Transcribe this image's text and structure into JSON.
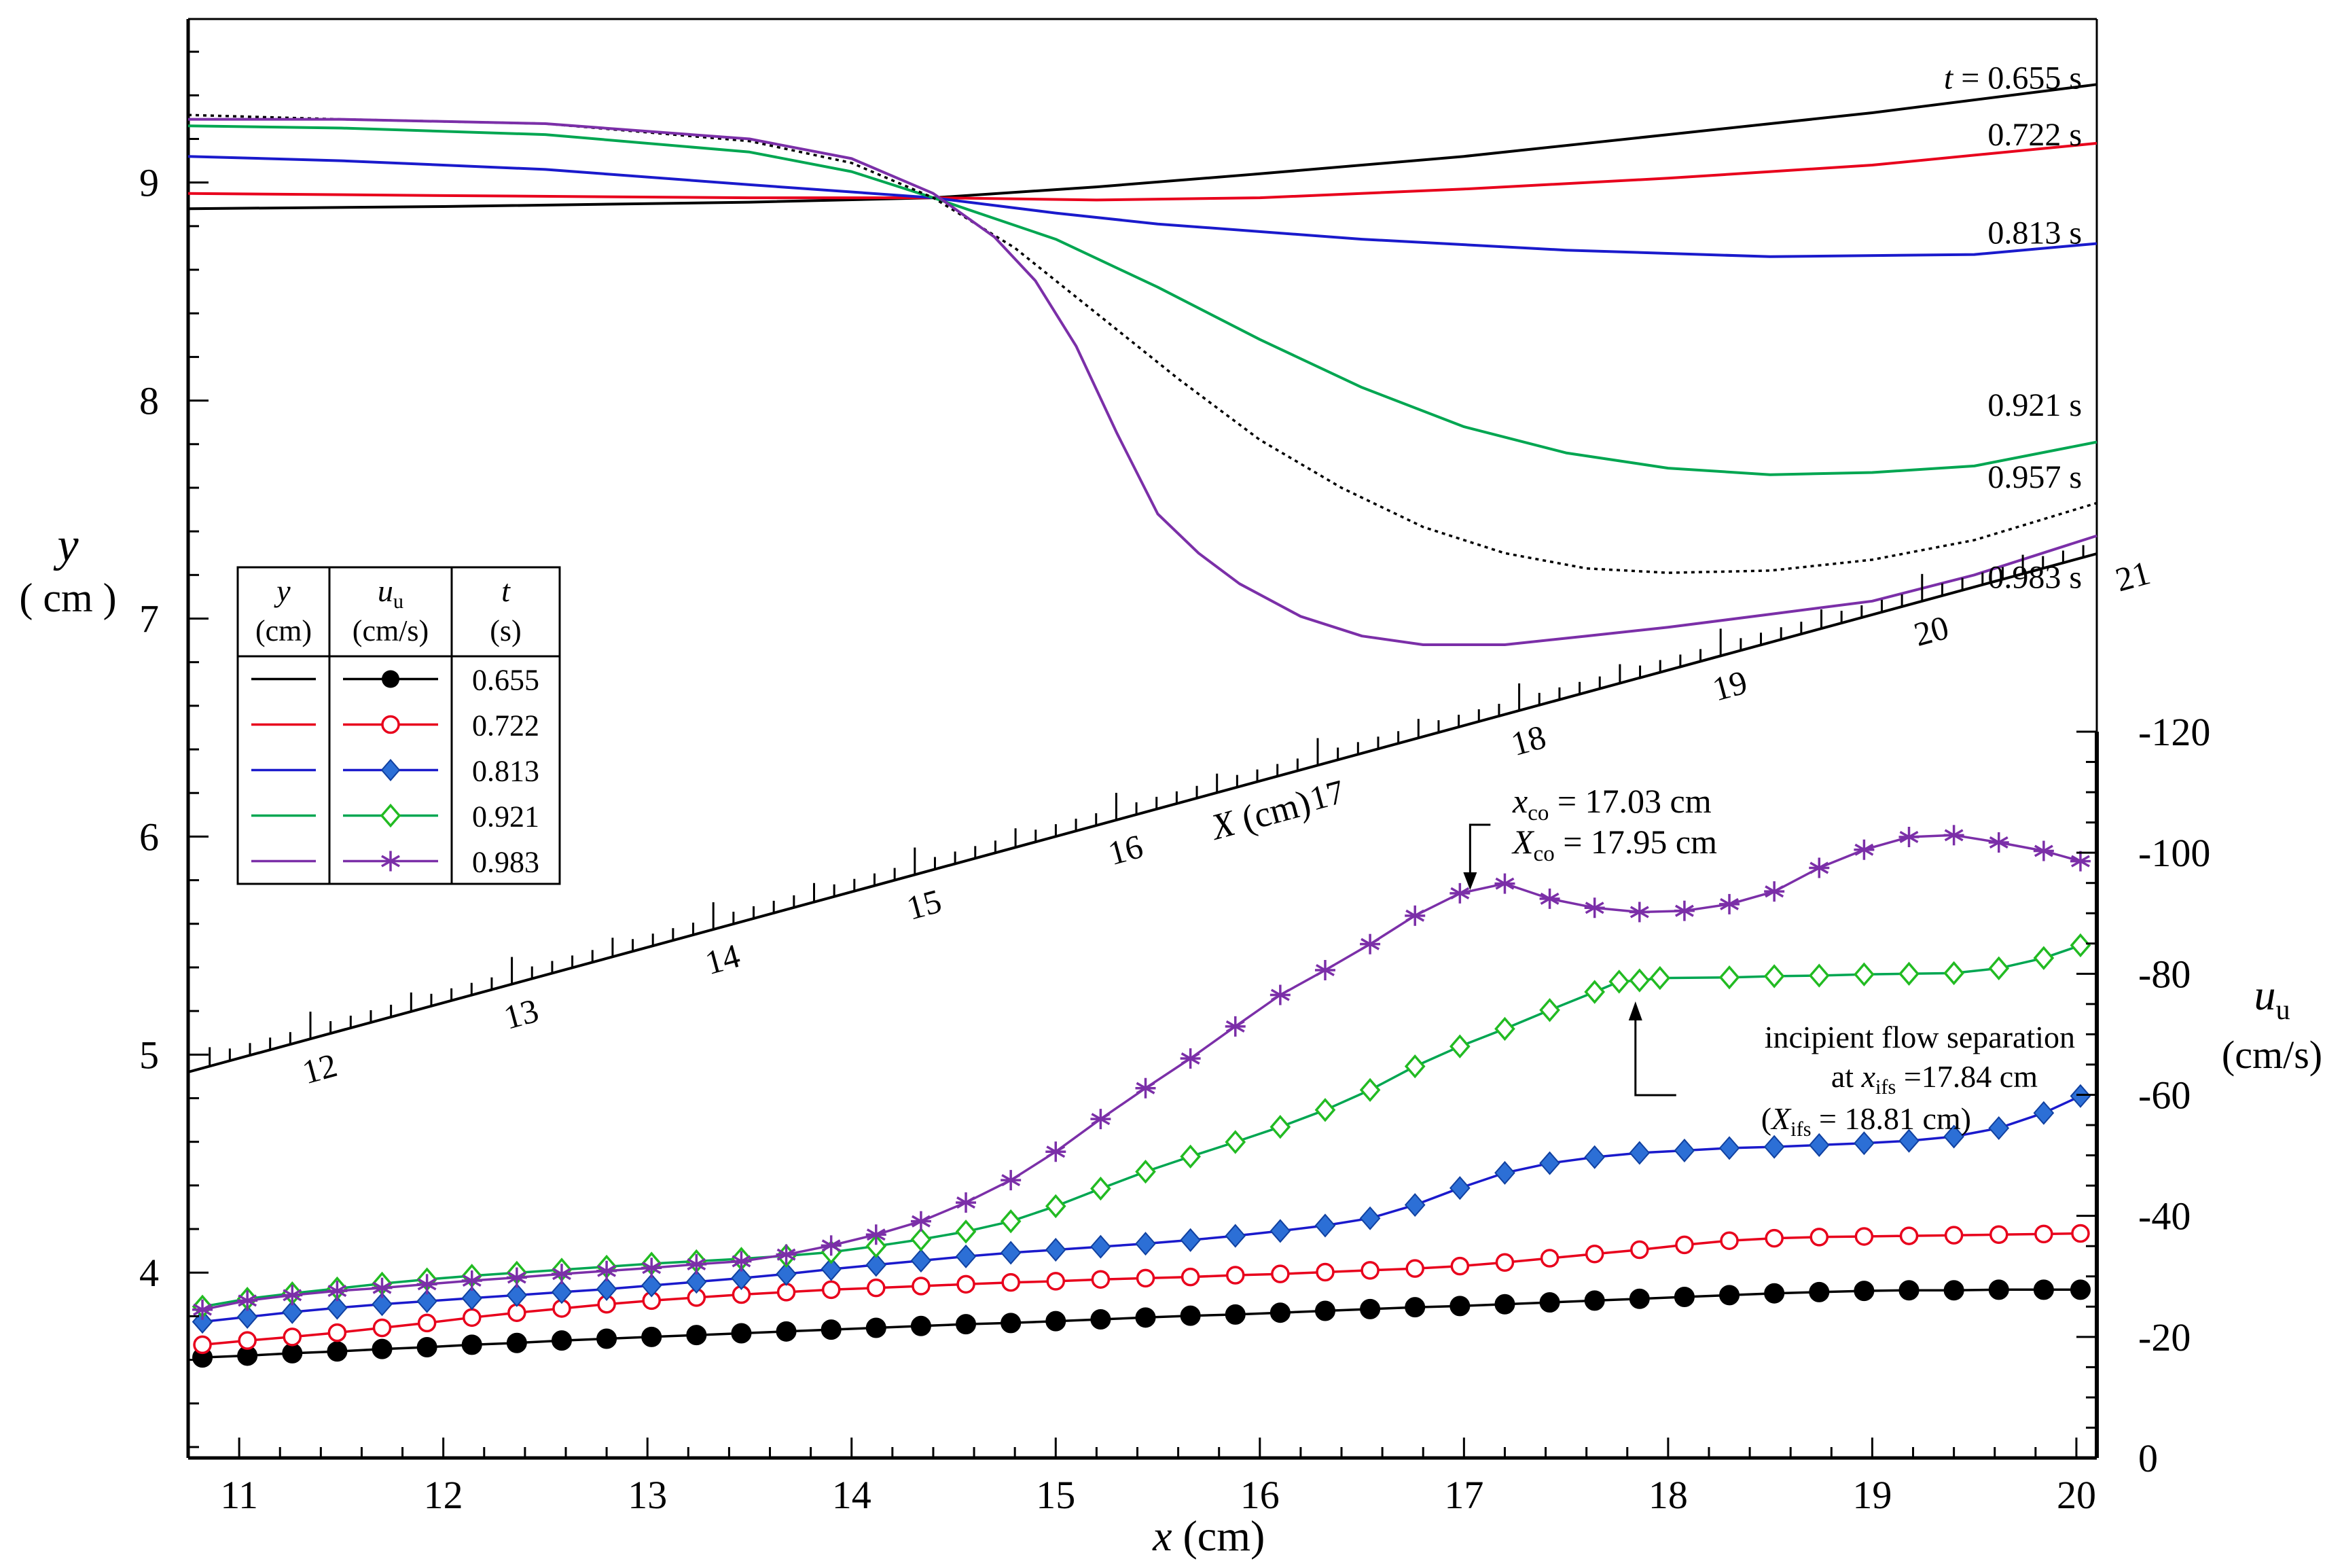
{
  "chart_data": {
    "type": "line",
    "title": "",
    "xlabel": "x",
    "xlabel_unit": "(cm)",
    "xlim": [
      10.75,
      20.1
    ],
    "x_ticks": [
      "11",
      "12",
      "13",
      "14",
      "15",
      "16",
      "17",
      "18",
      "19",
      "20"
    ],
    "ylabel_left": "y",
    "ylabel_left_unit": "( cm )",
    "ylim_left": [
      3.15,
      9.75
    ],
    "y_left_ticks": [
      "4",
      "5",
      "6",
      "7",
      "8",
      "9"
    ],
    "ylabel_right": "u",
    "ylabel_right_sub": "u",
    "ylabel_right_unit": "(cm/s)",
    "ylim_right": [
      0,
      -120
    ],
    "y_right_ticks": [
      "0",
      "-20",
      "-40",
      "-60",
      "-80",
      "-100",
      "-120"
    ],
    "colors": {
      "t0655": "#000000",
      "t0722": "#e8001c",
      "t0813": "#1a1acc",
      "t0921": "#00a651",
      "t0957": "#000000",
      "t0983": "#7b2fa8",
      "marker0813": "#2c6fd6",
      "marker0921": "#22bb22"
    },
    "profile_labels": [
      "0.655 s",
      "0.722 s",
      "0.813 s",
      "0.921 s",
      "0.957 s",
      "0.983 s"
    ],
    "profile_label_t": "t",
    "profiles": [
      {
        "t": "0.655",
        "style": "solid",
        "x": [
          10.75,
          12,
          13.5,
          14.4,
          15.2,
          16,
          17,
          18,
          19,
          20.1
        ],
        "y": [
          8.88,
          8.89,
          8.91,
          8.93,
          8.98,
          9.04,
          9.12,
          9.22,
          9.32,
          9.45
        ]
      },
      {
        "t": "0.722",
        "style": "solid",
        "x": [
          10.75,
          12,
          13.5,
          14.4,
          15.2,
          16,
          17,
          18,
          19,
          20.1
        ],
        "y": [
          8.95,
          8.94,
          8.93,
          8.93,
          8.92,
          8.93,
          8.97,
          9.02,
          9.08,
          9.18
        ]
      },
      {
        "t": "0.813",
        "style": "solid",
        "x": [
          10.75,
          11.5,
          12.5,
          13.5,
          14.4,
          15,
          15.5,
          16.5,
          17.5,
          18.5,
          19.5,
          20.1
        ],
        "y": [
          9.12,
          9.1,
          9.06,
          8.99,
          8.93,
          8.86,
          8.81,
          8.74,
          8.69,
          8.66,
          8.67,
          8.72
        ]
      },
      {
        "t": "0.921",
        "style": "solid",
        "x": [
          10.75,
          11.5,
          12.5,
          13.5,
          14.0,
          14.4,
          15.0,
          15.5,
          16.0,
          16.5,
          17.0,
          17.5,
          18.0,
          18.5,
          19.0,
          19.5,
          20.1
        ],
        "y": [
          9.26,
          9.25,
          9.22,
          9.14,
          9.05,
          8.93,
          8.74,
          8.52,
          8.28,
          8.06,
          7.88,
          7.76,
          7.69,
          7.66,
          7.67,
          7.7,
          7.81
        ]
      },
      {
        "t": "0.957",
        "style": "dotted",
        "x": [
          10.75,
          11.5,
          12.5,
          13.5,
          14.0,
          14.4,
          14.8,
          15.2,
          15.6,
          16.0,
          16.4,
          16.8,
          17.2,
          17.6,
          18.0,
          18.5,
          19.0,
          19.5,
          20.1
        ],
        "y": [
          9.31,
          9.29,
          9.27,
          9.19,
          9.09,
          8.93,
          8.7,
          8.4,
          8.1,
          7.82,
          7.6,
          7.42,
          7.3,
          7.23,
          7.21,
          7.22,
          7.27,
          7.36,
          7.53
        ]
      },
      {
        "t": "0.983",
        "style": "solid",
        "x": [
          10.75,
          11.5,
          12.5,
          13.5,
          14.0,
          14.4,
          14.7,
          14.9,
          15.1,
          15.3,
          15.5,
          15.7,
          15.9,
          16.2,
          16.5,
          16.8,
          17.2,
          17.6,
          18.0,
          18.5,
          19.0,
          19.5,
          20.1
        ],
        "y": [
          9.29,
          9.29,
          9.27,
          9.2,
          9.11,
          8.95,
          8.75,
          8.55,
          8.25,
          7.85,
          7.48,
          7.3,
          7.16,
          7.01,
          6.92,
          6.88,
          6.88,
          6.92,
          6.96,
          7.02,
          7.08,
          7.2,
          7.38
        ]
      }
    ],
    "velocity_series": [
      {
        "t": "0.655",
        "marker": "filled-circle",
        "x": [
          10.82,
          11.04,
          11.26,
          11.48,
          11.7,
          11.92,
          12.14,
          12.36,
          12.58,
          12.8,
          13.02,
          13.24,
          13.46,
          13.68,
          13.9,
          14.12,
          14.34,
          14.56,
          14.78,
          15.0,
          15.22,
          15.44,
          15.66,
          15.88,
          16.1,
          16.32,
          16.54,
          16.76,
          16.98,
          17.2,
          17.42,
          17.64,
          17.86,
          18.08,
          18.3,
          18.52,
          18.74,
          18.96,
          19.18,
          19.4,
          19.62,
          19.84,
          20.02
        ],
        "u": [
          -16.6,
          -16.9,
          -17.3,
          -17.6,
          -18.0,
          -18.3,
          -18.7,
          -19.0,
          -19.4,
          -19.7,
          -20.0,
          -20.3,
          -20.6,
          -20.9,
          -21.2,
          -21.5,
          -21.8,
          -22.1,
          -22.3,
          -22.6,
          -22.9,
          -23.2,
          -23.5,
          -23.7,
          -24.0,
          -24.3,
          -24.6,
          -24.9,
          -25.1,
          -25.4,
          -25.7,
          -26.0,
          -26.3,
          -26.6,
          -26.9,
          -27.2,
          -27.4,
          -27.6,
          -27.7,
          -27.7,
          -27.8,
          -27.8,
          -27.8
        ]
      },
      {
        "t": "0.722",
        "marker": "open-circle",
        "x": [
          10.82,
          11.04,
          11.26,
          11.48,
          11.7,
          11.92,
          12.14,
          12.36,
          12.58,
          12.8,
          13.02,
          13.24,
          13.46,
          13.68,
          13.9,
          14.12,
          14.34,
          14.56,
          14.78,
          15.0,
          15.22,
          15.44,
          15.66,
          15.88,
          16.1,
          16.32,
          16.54,
          16.76,
          16.98,
          17.2,
          17.42,
          17.64,
          17.86,
          18.08,
          18.3,
          18.52,
          18.74,
          18.96,
          19.18,
          19.4,
          19.62,
          19.84,
          20.02
        ],
        "u": [
          -18.7,
          -19.4,
          -20.0,
          -20.7,
          -21.5,
          -22.3,
          -23.2,
          -24.0,
          -24.7,
          -25.4,
          -26.0,
          -26.5,
          -27.0,
          -27.4,
          -27.8,
          -28.1,
          -28.4,
          -28.7,
          -29.0,
          -29.2,
          -29.5,
          -29.7,
          -29.9,
          -30.2,
          -30.4,
          -30.7,
          -31.0,
          -31.3,
          -31.7,
          -32.3,
          -33.0,
          -33.7,
          -34.4,
          -35.2,
          -35.9,
          -36.3,
          -36.5,
          -36.6,
          -36.7,
          -36.8,
          -36.9,
          -37.0,
          -37.1
        ]
      },
      {
        "t": "0.813",
        "marker": "filled-diamond",
        "x": [
          10.82,
          11.04,
          11.26,
          11.48,
          11.7,
          11.92,
          12.14,
          12.36,
          12.58,
          12.8,
          13.02,
          13.24,
          13.46,
          13.68,
          13.9,
          14.12,
          14.34,
          14.56,
          14.78,
          15.0,
          15.22,
          15.44,
          15.66,
          15.88,
          16.1,
          16.32,
          16.54,
          16.76,
          16.98,
          17.2,
          17.42,
          17.64,
          17.86,
          18.08,
          18.3,
          18.52,
          18.74,
          18.96,
          19.18,
          19.4,
          19.62,
          19.84,
          20.02
        ],
        "u": [
          -22.5,
          -23.3,
          -24.1,
          -24.8,
          -25.4,
          -25.9,
          -26.4,
          -26.9,
          -27.4,
          -27.9,
          -28.5,
          -29.1,
          -29.7,
          -30.4,
          -31.2,
          -31.9,
          -32.6,
          -33.3,
          -33.9,
          -34.4,
          -34.9,
          -35.4,
          -36.0,
          -36.7,
          -37.5,
          -38.4,
          -39.6,
          -41.8,
          -44.6,
          -47.1,
          -48.7,
          -49.7,
          -50.4,
          -50.8,
          -51.2,
          -51.4,
          -51.7,
          -52.0,
          -52.4,
          -53.1,
          -54.5,
          -57.0,
          -59.8
        ]
      },
      {
        "t": "0.921",
        "marker": "open-diamond",
        "x": [
          10.82,
          11.04,
          11.26,
          11.48,
          11.7,
          11.92,
          12.14,
          12.36,
          12.58,
          12.8,
          13.02,
          13.24,
          13.46,
          13.68,
          13.9,
          14.12,
          14.34,
          14.56,
          14.78,
          15.0,
          15.22,
          15.44,
          15.66,
          15.88,
          16.1,
          16.32,
          16.54,
          16.76,
          16.98,
          17.2,
          17.42,
          17.64,
          17.76,
          17.86,
          17.96,
          18.3,
          18.52,
          18.74,
          18.96,
          19.18,
          19.4,
          19.62,
          19.84,
          20.02
        ],
        "u": [
          -25.0,
          -26.3,
          -27.2,
          -28.0,
          -28.8,
          -29.5,
          -30.1,
          -30.6,
          -31.1,
          -31.6,
          -32.1,
          -32.5,
          -32.9,
          -33.4,
          -34.0,
          -35.0,
          -36.1,
          -37.4,
          -39.1,
          -41.6,
          -44.5,
          -47.3,
          -49.8,
          -52.2,
          -54.7,
          -57.5,
          -60.8,
          -64.7,
          -68.0,
          -70.9,
          -74.0,
          -77.0,
          -78.7,
          -78.9,
          -79.3,
          -79.4,
          -79.6,
          -79.7,
          -79.9,
          -80.0,
          -80.1,
          -80.9,
          -82.6,
          -84.7
        ]
      },
      {
        "t": "0.983",
        "marker": "asterisk",
        "x": [
          10.82,
          11.04,
          11.26,
          11.48,
          11.7,
          11.92,
          12.14,
          12.36,
          12.58,
          12.8,
          13.02,
          13.24,
          13.46,
          13.68,
          13.9,
          14.12,
          14.34,
          14.56,
          14.78,
          15.0,
          15.22,
          15.44,
          15.66,
          15.88,
          16.1,
          16.32,
          16.54,
          16.76,
          16.98,
          17.2,
          17.42,
          17.64,
          17.86,
          18.08,
          18.3,
          18.52,
          18.74,
          18.96,
          19.18,
          19.4,
          19.62,
          19.84,
          20.02
        ],
        "u": [
          -24.5,
          -26.0,
          -26.9,
          -27.6,
          -28.1,
          -28.7,
          -29.3,
          -29.8,
          -30.4,
          -30.9,
          -31.4,
          -32.0,
          -32.5,
          -33.6,
          -35.1,
          -36.9,
          -39.1,
          -42.2,
          -45.9,
          -50.6,
          -56.0,
          -61.1,
          -66.0,
          -71.3,
          -76.5,
          -80.6,
          -84.9,
          -89.6,
          -93.3,
          -94.9,
          -92.4,
          -90.9,
          -90.2,
          -90.4,
          -91.5,
          -93.6,
          -97.5,
          -100.5,
          -102.6,
          -102.9,
          -101.7,
          -100.3,
          -98.6
        ]
      }
    ],
    "X_axis": {
      "label": "X",
      "label_unit": "(cm)",
      "ticks": [
        "12",
        "13",
        "14",
        "15",
        "16",
        "17",
        "18",
        "19",
        "20",
        "21"
      ],
      "minor_per_major": 10
    },
    "legend": {
      "position": "left-middle",
      "headers": [
        [
          "y",
          "(cm)"
        ],
        [
          "u",
          "(cm/s)"
        ],
        [
          "t",
          "(s)"
        ]
      ],
      "header_sub": "u",
      "rows": [
        "0.655",
        "0.722",
        "0.813",
        "0.921",
        "0.983"
      ]
    },
    "annotations": {
      "cutoff": {
        "line1_var": "x",
        "line1_sub": "co",
        "line1_text": " = 17.03 cm",
        "line2_var": "X",
        "line2_sub": "co",
        "line2_text": " = 17.95 cm",
        "arrow_x": 17.03,
        "arrow_u": -92.5
      },
      "ifs": {
        "line1": "incipient flow separation",
        "line2_prefix": "at ",
        "line2_var": "x",
        "line2_sub": "ifs",
        "line2_text": " =17.84 cm",
        "line3_prefix": "(",
        "line3_var": "X",
        "line3_sub": "ifs",
        "line3_text": " = 18.81 cm)",
        "arrow_x": 17.84,
        "arrow_u": -77.0
      }
    }
  }
}
